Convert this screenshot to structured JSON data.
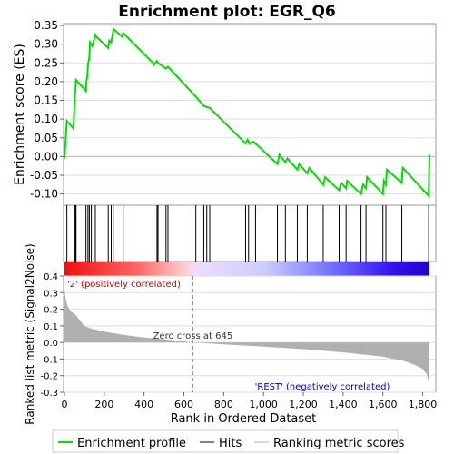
{
  "chart_data": {
    "type": "line",
    "title": "Enrichment plot: EGR_Q6",
    "colors": {
      "es_line": "#00dd00",
      "hits": "#000000",
      "metric_fill": "#b0b0b0",
      "zero_cross_line": "#888888",
      "pos_label": "#cc0000",
      "neg_label": "#0000cc"
    },
    "es_panel": {
      "ylabel": "Enrichment score (ES)",
      "ylim": [
        -0.13,
        0.355
      ],
      "yticks": [
        -0.1,
        -0.05,
        0.0,
        0.05,
        0.1,
        0.15,
        0.2,
        0.25,
        0.3,
        0.35
      ],
      "ytick_labels": [
        "-0.10",
        "-0.05",
        "0.00",
        "0.05",
        "0.10",
        "0.15",
        "0.20",
        "0.25",
        "0.30",
        "0.35"
      ],
      "grid": true,
      "series": [
        {
          "name": "Enrichment profile",
          "x": [
            0,
            12,
            45,
            50,
            52,
            55,
            58,
            108,
            110,
            115,
            118,
            125,
            128,
            135,
            140,
            155,
            160,
            220,
            225,
            235,
            240,
            245,
            248,
            290,
            295,
            445,
            450,
            465,
            470,
            510,
            520,
            660,
            700,
            730,
            910,
            920,
            930,
            950,
            960,
            1070,
            1080,
            1110,
            1120,
            1170,
            1180,
            1220,
            1230,
            1300,
            1310,
            1380,
            1390,
            1415,
            1420,
            1490,
            1500,
            1515,
            1520,
            1600,
            1605,
            1615,
            1620,
            1695,
            1700,
            1830,
            1834
          ],
          "y": [
            -0.005,
            0.095,
            0.075,
            0.14,
            0.16,
            0.18,
            0.205,
            0.175,
            0.2,
            0.215,
            0.245,
            0.265,
            0.305,
            0.3,
            0.295,
            0.325,
            0.32,
            0.29,
            0.31,
            0.305,
            0.32,
            0.335,
            0.34,
            0.32,
            0.33,
            0.25,
            0.245,
            0.255,
            0.25,
            0.235,
            0.24,
            0.16,
            0.135,
            0.13,
            0.035,
            0.045,
            0.035,
            0.04,
            0.035,
            -0.02,
            0.005,
            -0.015,
            -0.005,
            -0.035,
            -0.02,
            -0.045,
            -0.03,
            -0.075,
            -0.055,
            -0.09,
            -0.07,
            -0.085,
            -0.065,
            -0.1,
            -0.075,
            -0.085,
            -0.055,
            -0.1,
            -0.065,
            -0.075,
            -0.035,
            -0.07,
            -0.03,
            -0.105,
            0.005
          ]
        }
      ]
    },
    "hits_panel": {
      "positions": [
        12,
        50,
        55,
        58,
        108,
        118,
        125,
        135,
        155,
        220,
        235,
        245,
        295,
        445,
        465,
        470,
        510,
        520,
        660,
        700,
        715,
        730,
        910,
        925,
        960,
        1070,
        1110,
        1170,
        1220,
        1300,
        1380,
        1415,
        1490,
        1515,
        1600,
        1615,
        1695,
        1830
      ]
    },
    "metric_panel": {
      "ylabel": "Ranked list metric (Signal2Noise)",
      "xlabel": "Rank in Ordered Dataset",
      "xlim": [
        0,
        1834
      ],
      "ylim": [
        -0.3,
        0.4
      ],
      "yticks": [
        -0.3,
        -0.2,
        -0.1,
        0.0,
        0.1,
        0.2,
        0.3,
        0.4
      ],
      "ytick_labels": [
        "-0.3",
        "-0.2",
        "-0.1",
        "0.0",
        "0.1",
        "0.2",
        "0.3",
        "0.4"
      ],
      "xticks": [
        0,
        200,
        400,
        600,
        800,
        1000,
        1200,
        1400,
        1600,
        1800
      ],
      "xtick_labels": [
        "0",
        "200",
        "400",
        "600",
        "800",
        "1,000",
        "1,200",
        "1,400",
        "1,600",
        "1,800"
      ],
      "curve_x": [
        0,
        5,
        15,
        30,
        60,
        80,
        100,
        130,
        200,
        300,
        400,
        500,
        645,
        800,
        1000,
        1200,
        1400,
        1600,
        1700,
        1760,
        1800,
        1820,
        1828,
        1834
      ],
      "curve_y": [
        0.33,
        0.27,
        0.22,
        0.19,
        0.16,
        0.13,
        0.1,
        0.085,
        0.065,
        0.045,
        0.03,
        0.02,
        0.0,
        -0.012,
        -0.025,
        -0.04,
        -0.06,
        -0.085,
        -0.11,
        -0.135,
        -0.16,
        -0.19,
        -0.23,
        -0.28
      ],
      "zero_cross_rank": 645,
      "zero_cross_label": "Zero cross at 645",
      "pos_label": "'2' (positively correlated)",
      "neg_label": "'REST' (negatively correlated)"
    },
    "legend": {
      "placement": "bottom",
      "entries": [
        {
          "name": "Enrichment profile",
          "color": "#00dd00"
        },
        {
          "name": "Hits",
          "color": "#000000"
        },
        {
          "name": "Ranking metric scores",
          "color": "#b0b0b0"
        }
      ]
    }
  }
}
